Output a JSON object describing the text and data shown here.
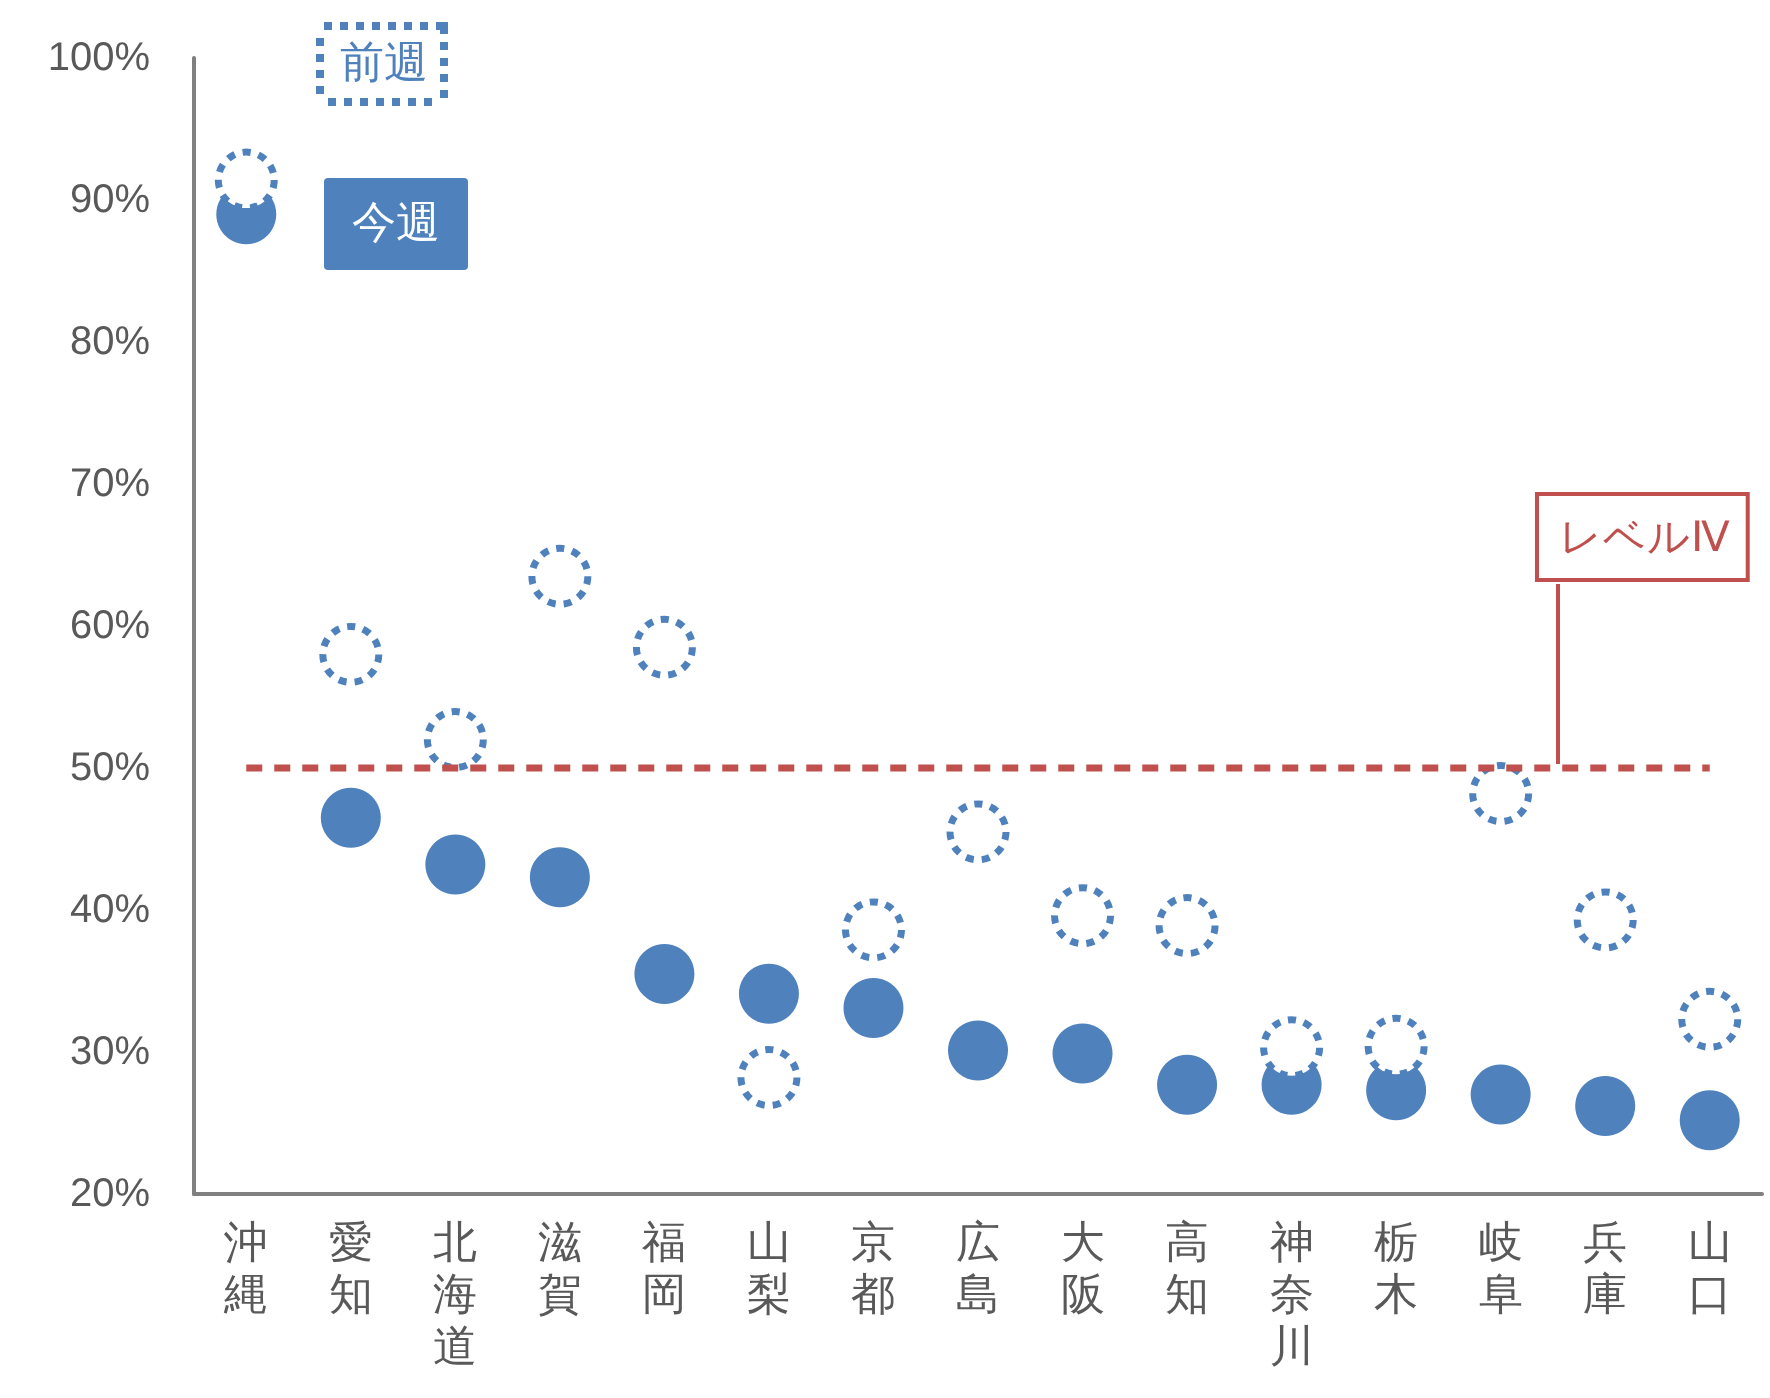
{
  "chart_data": {
    "type": "scatter",
    "categories": [
      "沖縄",
      "愛知",
      "北海道",
      "滋賀",
      "福岡",
      "山梨",
      "京都",
      "広島",
      "大阪",
      "高知",
      "神奈川",
      "栃木",
      "岐阜",
      "兵庫",
      "山口"
    ],
    "series": [
      {
        "name": "前週",
        "color": "#4f81bd",
        "line_style": "dotted",
        "values": [
          91.4,
          58.0,
          52.0,
          63.5,
          58.5,
          28.2,
          38.6,
          45.5,
          39.6,
          38.9,
          30.3,
          30.4,
          48.2,
          39.3,
          32.3
        ]
      },
      {
        "name": "今週",
        "color": "#4f81bd",
        "values": [
          89.0,
          46.5,
          43.2,
          42.3,
          35.5,
          34.1,
          33.1,
          30.1,
          29.9,
          27.7,
          27.7,
          27.3,
          27.0,
          26.2,
          25.2
        ]
      }
    ],
    "ylim": [
      20,
      100
    ],
    "yticks": [
      {
        "value": 20,
        "label": "20%"
      },
      {
        "value": 30,
        "label": "30%"
      },
      {
        "value": 40,
        "label": "40%"
      },
      {
        "value": 50,
        "label": "50%"
      },
      {
        "value": 60,
        "label": "60%"
      },
      {
        "value": 70,
        "label": "70%"
      },
      {
        "value": 80,
        "label": "80%"
      },
      {
        "value": 90,
        "label": "90%"
      },
      {
        "value": 100,
        "label": "100%"
      }
    ],
    "ref_lines": [
      {
        "axis": "y",
        "value": 50,
        "label": "レベルⅣ",
        "color": "#c0504d",
        "line_style": "dashed"
      }
    ],
    "marker": "circle",
    "grid": false,
    "legend": "top left"
  }
}
